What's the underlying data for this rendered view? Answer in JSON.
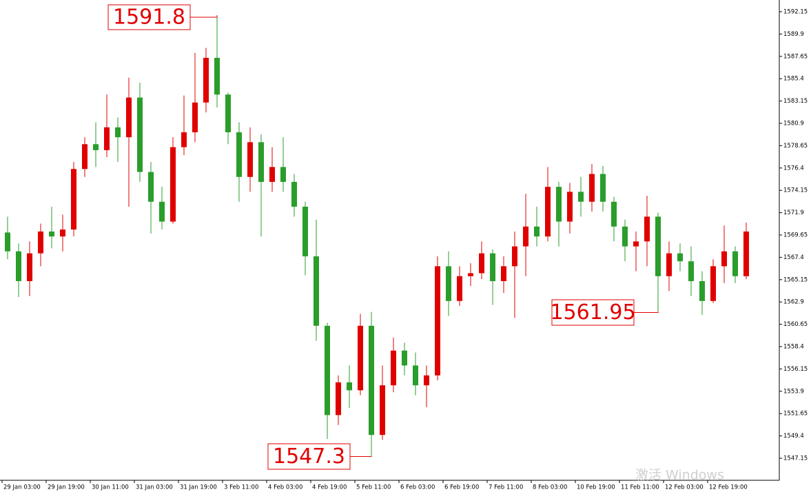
{
  "chart_data": {
    "type": "candlestick",
    "up_color": "#e00000",
    "down_color": "#2a9d2a",
    "ylim": [
      1544.93,
      1593.33
    ],
    "yticks": [
      1592.15,
      1589.9,
      1587.65,
      1585.4,
      1583.15,
      1580.9,
      1578.65,
      1576.4,
      1574.15,
      1571.9,
      1569.65,
      1567.4,
      1565.15,
      1562.9,
      1560.65,
      1558.4,
      1556.15,
      1553.9,
      1551.65,
      1549.4,
      1547.15
    ],
    "xticks": [
      {
        "value": 0,
        "label": "29 Jan 03:00"
      },
      {
        "value": 4,
        "label": "29 Jan 19:00"
      },
      {
        "value": 8,
        "label": "30 Jan 11:00"
      },
      {
        "value": 12,
        "label": "31 Jan 03:00"
      },
      {
        "value": 16,
        "label": "31 Jan 19:00"
      },
      {
        "value": 20,
        "label": "3 Feb 11:00"
      },
      {
        "value": 24,
        "label": "4 Feb 03:00"
      },
      {
        "value": 28,
        "label": "4 Feb 19:00"
      },
      {
        "value": 32,
        "label": "5 Feb 11:00"
      },
      {
        "value": 36,
        "label": "6 Feb 03:00"
      },
      {
        "value": 40,
        "label": "6 Feb 19:00"
      },
      {
        "value": 44,
        "label": "7 Feb 11:00"
      },
      {
        "value": 48,
        "label": "8 Feb 03:00"
      },
      {
        "value": 52,
        "label": "10 Feb 19:00"
      },
      {
        "value": 56,
        "label": "11 Feb 11:00"
      },
      {
        "value": 60,
        "label": "12 Feb 03:00"
      },
      {
        "value": 64,
        "label": "12 Feb 19:00"
      }
    ],
    "open": [
      1569.9,
      1568,
      1565,
      1567.8,
      1570,
      1569.5,
      1570.2,
      1576.3,
      1578.8,
      1578.2,
      1580.5,
      1579.5,
      1583.5,
      1576,
      1573,
      1571,
      1578.5,
      1580,
      1583,
      1587.5,
      1583.8,
      1580,
      1575.5,
      1579,
      1575,
      1576.5,
      1575,
      1572.5,
      1567.5,
      1560.5,
      1551.5,
      1554.8,
      1554,
      1560.5,
      1549.5,
      1554.5,
      1558,
      1556.5,
      1554.5,
      1555.5,
      1566.5,
      1563,
      1565.5,
      1565.8,
      1567.8,
      1565,
      1566.5,
      1568.5,
      1570.5,
      1569.5,
      1574.5,
      1571,
      1574,
      1573,
      1575.8,
      1573,
      1570.5,
      1568.5,
      1569,
      1571.5,
      1565.5,
      1567.8,
      1567,
      1565,
      1563,
      1566.5,
      1568,
      1565.5
    ],
    "high": [
      1571.5,
      1568.8,
      1569,
      1570.8,
      1572.5,
      1571.7,
      1577,
      1579.5,
      1581,
      1583.8,
      1581.5,
      1585.5,
      1585,
      1577,
      1574.5,
      1579.5,
      1583.7,
      1588,
      1588.5,
      1591.8,
      1584,
      1581,
      1580.5,
      1579.8,
      1578.5,
      1579.5,
      1575.8,
      1573,
      1571.2,
      1560.8,
      1555.5,
      1556.5,
      1561.7,
      1561.9,
      1556.5,
      1559.3,
      1558.8,
      1557.8,
      1556.5,
      1567.5,
      1568,
      1566.5,
      1566.8,
      1569,
      1568.2,
      1567.5,
      1570,
      1573.8,
      1572.5,
      1576.5,
      1575,
      1574.9,
      1575.5,
      1576.8,
      1576.6,
      1573.5,
      1571.2,
      1570,
      1573.6,
      1571.9,
      1569,
      1568.8,
      1568.5,
      1566,
      1567.2,
      1570.6,
      1568.5,
      1570.9
    ],
    "low": [
      1567.2,
      1563.4,
      1563.5,
      1566.5,
      1568.3,
      1568,
      1569.5,
      1575.5,
      1576.5,
      1577.5,
      1577,
      1572.5,
      1575,
      1569.8,
      1570.2,
      1570.8,
      1577.7,
      1579,
      1582,
      1582.5,
      1578.8,
      1573,
      1574,
      1569.5,
      1574,
      1574,
      1571.5,
      1565.6,
      1559,
      1549.1,
      1550.5,
      1552.2,
      1553.5,
      1547.3,
      1549,
      1553.8,
      1555.5,
      1553.5,
      1552.3,
      1555,
      1561.5,
      1562.5,
      1564.5,
      1565.2,
      1562.6,
      1563.8,
      1561.3,
      1565.5,
      1568.5,
      1569,
      1568.5,
      1569.8,
      1571.5,
      1572,
      1572,
      1569,
      1567,
      1566,
      1566.5,
      1561.95,
      1564,
      1566,
      1563.5,
      1561.6,
      1562.8,
      1564.8,
      1564.8,
      1565.2
    ],
    "close": [
      1568,
      1565,
      1567.8,
      1570,
      1569.5,
      1570.2,
      1576.3,
      1578.8,
      1578.2,
      1580.5,
      1579.5,
      1583.5,
      1576,
      1573,
      1571,
      1578.5,
      1580,
      1583,
      1587.5,
      1583.8,
      1580,
      1575.5,
      1579,
      1575,
      1576.5,
      1575,
      1572.5,
      1567.5,
      1560.5,
      1551.5,
      1554.8,
      1554,
      1560.5,
      1549.5,
      1554.5,
      1558,
      1556.5,
      1554.5,
      1555.5,
      1566.5,
      1563,
      1565.5,
      1565.8,
      1567.8,
      1565,
      1566.5,
      1568.5,
      1570.5,
      1569.5,
      1574.5,
      1571,
      1574,
      1573,
      1575.8,
      1573,
      1570.5,
      1568.5,
      1569,
      1571.5,
      1565.5,
      1567.8,
      1567,
      1565,
      1563,
      1566.5,
      1568,
      1565.5,
      1570
    ],
    "annotations": [
      1591.8,
      1547.3,
      1561.95
    ],
    "watermark": "激活 Windows"
  }
}
